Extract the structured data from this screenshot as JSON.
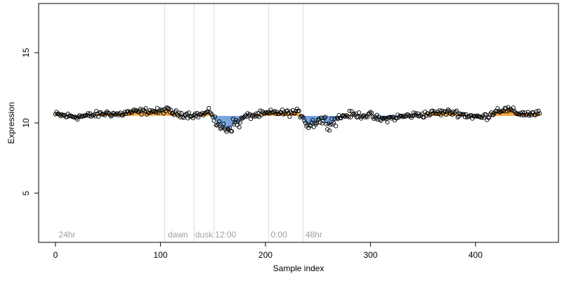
{
  "chart_data": {
    "type": "scatter",
    "title": "",
    "xlabel": "Sample index",
    "ylabel": "Expression",
    "xlim": [
      -16,
      479
    ],
    "ylim": [
      1.5,
      18.5
    ],
    "xticks": [
      0,
      100,
      200,
      300,
      400
    ],
    "yticks": [
      5,
      10,
      15
    ],
    "baseline": 10.5,
    "high_color": "#f4a742",
    "low_color": "#6fa0dc",
    "vertical_lines": [
      104,
      132,
      151,
      203,
      236
    ],
    "section_labels": [
      {
        "x": 3,
        "label": "24hr"
      },
      {
        "x": 107,
        "label": "dawn"
      },
      {
        "x": 133,
        "label": "dusk"
      },
      {
        "x": 152,
        "label": "12:00"
      },
      {
        "x": 205,
        "label": "0:00"
      },
      {
        "x": 238,
        "label": "48hr"
      }
    ],
    "anchors": [
      [
        0,
        10.6
      ],
      [
        10,
        10.5
      ],
      [
        20,
        10.45
      ],
      [
        30,
        10.5
      ],
      [
        40,
        10.6
      ],
      [
        50,
        10.7
      ],
      [
        60,
        10.6
      ],
      [
        70,
        10.75
      ],
      [
        80,
        10.8
      ],
      [
        90,
        10.85
      ],
      [
        100,
        10.8
      ],
      [
        104,
        10.95
      ],
      [
        115,
        10.65
      ],
      [
        125,
        10.6
      ],
      [
        132,
        10.55
      ],
      [
        140,
        10.6
      ],
      [
        148,
        10.8
      ],
      [
        151,
        10.35
      ],
      [
        155,
        9.75
      ],
      [
        160,
        9.7
      ],
      [
        165,
        9.6
      ],
      [
        170,
        9.95
      ],
      [
        175,
        10.05
      ],
      [
        180,
        10.45
      ],
      [
        190,
        10.55
      ],
      [
        200,
        10.65
      ],
      [
        210,
        10.75
      ],
      [
        220,
        10.7
      ],
      [
        230,
        10.75
      ],
      [
        236,
        10.5
      ],
      [
        240,
        9.8
      ],
      [
        245,
        10.0
      ],
      [
        250,
        10.2
      ],
      [
        255,
        10.2
      ],
      [
        260,
        10.0
      ],
      [
        265,
        10.1
      ],
      [
        270,
        10.4
      ],
      [
        280,
        10.6
      ],
      [
        290,
        10.55
      ],
      [
        300,
        10.55
      ],
      [
        305,
        10.35
      ],
      [
        310,
        10.25
      ],
      [
        315,
        10.3
      ],
      [
        320,
        10.35
      ],
      [
        330,
        10.45
      ],
      [
        340,
        10.55
      ],
      [
        350,
        10.6
      ],
      [
        360,
        10.7
      ],
      [
        370,
        10.75
      ],
      [
        380,
        10.75
      ],
      [
        390,
        10.55
      ],
      [
        400,
        10.45
      ],
      [
        405,
        10.4
      ],
      [
        412,
        10.5
      ],
      [
        420,
        10.9
      ],
      [
        430,
        10.95
      ],
      [
        435,
        10.85
      ],
      [
        440,
        10.7
      ],
      [
        450,
        10.65
      ],
      [
        461,
        10.65
      ]
    ],
    "noise": {
      "global": 0.16,
      "dip1": [
        151,
        176,
        0.3
      ],
      "dip2": [
        236,
        268,
        0.28
      ]
    },
    "n_points": 462,
    "grid": false,
    "legend": "none"
  }
}
